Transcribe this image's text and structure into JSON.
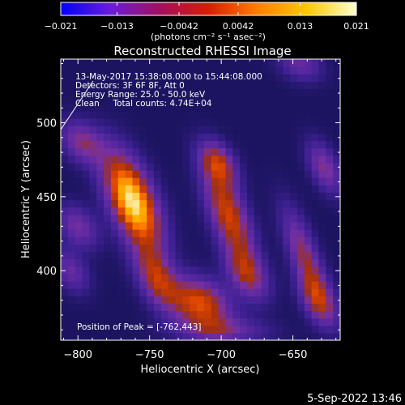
{
  "chart_data": {
    "type": "heatmap",
    "title": "Reconstructed RHESSI Image",
    "xlabel": "Heliocentric X (arcsec)",
    "ylabel": "Heliocentric Y (arcsec)",
    "xlim": [
      -812,
      -617
    ],
    "ylim": [
      353,
      543
    ],
    "x_ticks": [
      -800,
      -750,
      -700,
      -650
    ],
    "y_ticks": [
      400,
      450,
      500
    ],
    "x_tick_labels": [
      "−800",
      "−750",
      "−700",
      "−650"
    ],
    "y_tick_labels": [
      "400",
      "450",
      "500"
    ],
    "colorbar": {
      "range": [
        -0.021,
        0.021
      ],
      "tick_values": [
        -0.021,
        -0.013,
        -0.0042,
        0.0042,
        0.013,
        0.021
      ],
      "tick_labels": [
        "−0.021",
        "−0.013",
        "−0.0042",
        "0.0042",
        "0.013",
        "0.021"
      ],
      "unit_label": "(photons cm⁻² s⁻¹ asec⁻²)",
      "colors": [
        "#0000ff",
        "#6a1cd8",
        "#a01060",
        "#d81c00",
        "#ff8000",
        "#ffc800",
        "#ffffd0"
      ]
    },
    "info": {
      "time": "13-May-2017 15:38:08.000 to 15:44:08.000",
      "detectors": "Detectors: 3F 6F 8F, Att 0",
      "energy": "Energy Range: 25.0 - 50.0 keV",
      "clean": "Clean     Total counts: 4.74E+04"
    },
    "peak_label": "Position of Peak = [-762,443]",
    "peak_position": [
      -762,
      443
    ],
    "image_colormap": [
      "#1c1460",
      "#3c2090",
      "#5828a0",
      "#7830a0",
      "#a03010",
      "#d84000",
      "#ff7800",
      "#ffb400",
      "#fff0b0"
    ]
  },
  "footer": {
    "timestamp": "5-Sep-2022 13:46"
  }
}
